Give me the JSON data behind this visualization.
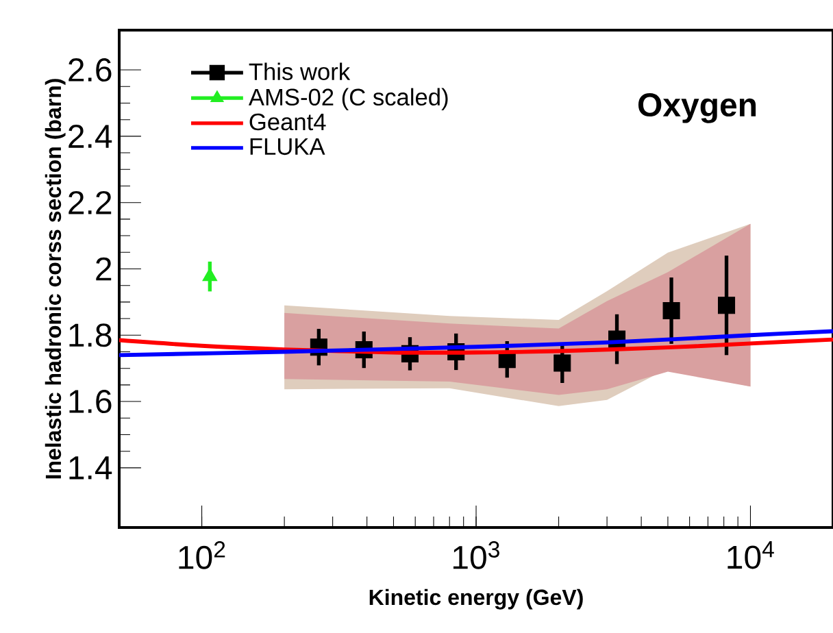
{
  "chart_data": {
    "type": "scatter",
    "xlabel": "Kinetic energy (GeV)",
    "ylabel": "Inelastic hadronic corss section (barn)",
    "annotations": [
      "Oxygen"
    ],
    "log": "x",
    "xlim": [
      50,
      20000
    ],
    "ylim": [
      1.22,
      2.72
    ],
    "xticks": [
      {
        "value": 100,
        "label": "10$^{2}$"
      },
      {
        "value": 1000,
        "label": "10$^{3}$"
      },
      {
        "value": 10000,
        "label": "10$^{4}$"
      }
    ],
    "yticks": [
      1.4,
      1.6,
      1.8,
      2,
      2.2,
      2.4,
      2.6
    ],
    "grid": false,
    "legend": "top left",
    "series": [
      {
        "type": "area",
        "color": "#dfcdbd",
        "x": [
          200,
          800,
          2000,
          3000,
          5000,
          10000
        ],
        "values": [
          null,
          null,
          null,
          null,
          null,
          null
        ],
        "lower": [
          1.637,
          1.64,
          1.586,
          1.605,
          1.7,
          1.645
        ],
        "upper": [
          1.89,
          1.858,
          1.846,
          1.933,
          2.049,
          2.136
        ]
      },
      {
        "type": "area",
        "color": "#d9a0a0",
        "x": [
          200,
          800,
          2000,
          3000,
          5000,
          10000
        ],
        "values": [
          null,
          null,
          null,
          null,
          null,
          null
        ],
        "lower": [
          1.668,
          1.66,
          1.62,
          1.637,
          1.69,
          1.645
        ],
        "upper": [
          1.867,
          1.835,
          1.82,
          1.903,
          1.99,
          2.136
        ]
      },
      {
        "name": "This work",
        "color": "#000000",
        "marker": "square",
        "x": [
          267,
          390,
          574,
          845,
          1297,
          2061,
          3260,
          5150,
          8180
        ],
        "values": [
          1.764,
          1.756,
          1.744,
          1.75,
          1.727,
          1.716,
          1.788,
          1.874,
          1.89
        ],
        "errors": [
          0.055,
          0.055,
          0.05,
          0.055,
          0.055,
          0.06,
          0.075,
          0.1,
          0.15
        ]
      },
      {
        "name": "AMS-02 (C scaled)",
        "color": "#22ee22",
        "marker": "triangle",
        "x": [
          107
        ],
        "values": [
          1.977
        ],
        "errors": [
          0.045
        ]
      },
      {
        "type": "line",
        "name": "Geant4",
        "color": "#ff0000",
        "x": [
          50,
          100,
          200,
          500,
          1000,
          2000,
          5000,
          10000,
          20000
        ],
        "values": [
          1.785,
          1.768,
          1.757,
          1.748,
          1.748,
          1.752,
          1.763,
          1.775,
          1.787
        ]
      },
      {
        "type": "line",
        "name": "FLUKA",
        "color": "#0000ff",
        "x": [
          50,
          200,
          1000,
          3000,
          10000,
          20000
        ],
        "values": [
          1.74,
          1.75,
          1.765,
          1.778,
          1.8,
          1.812
        ]
      }
    ]
  }
}
